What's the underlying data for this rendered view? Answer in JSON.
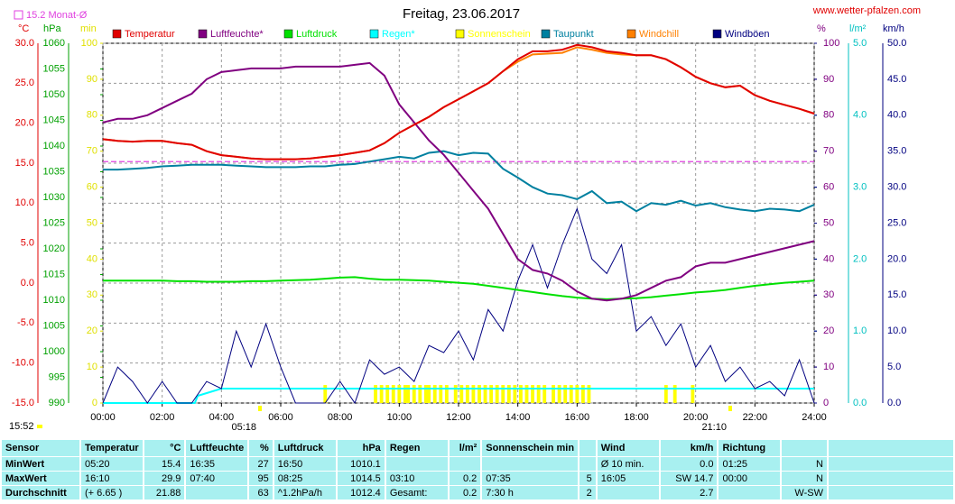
{
  "chart_data": {
    "type": "line",
    "title": "Freitag, 23.06.2017",
    "site": "www.wetter-pfalzen.com",
    "monthly_avg": {
      "label": "15.2 Monat-Ø",
      "value": 15.2,
      "color": "#e040e0",
      "axis": "temp"
    },
    "updated": "15:52",
    "sunrise": {
      "time": "05:18",
      "x": 5.3
    },
    "sunset": {
      "time": "21:10",
      "x": 21.1667
    },
    "grid": true,
    "xlim": [
      0,
      24
    ],
    "xticks": [
      {
        "value": 0,
        "label": "00:00"
      },
      {
        "value": 2,
        "label": "02:00"
      },
      {
        "value": 4,
        "label": "04:00"
      },
      {
        "value": 6,
        "label": "06:00"
      },
      {
        "value": 8,
        "label": "08:00"
      },
      {
        "value": 10,
        "label": "10:00"
      },
      {
        "value": 12,
        "label": "12:00"
      },
      {
        "value": 14,
        "label": "14:00"
      },
      {
        "value": 16,
        "label": "16:00"
      },
      {
        "value": 18,
        "label": "18:00"
      },
      {
        "value": 20,
        "label": "20:00"
      },
      {
        "value": 22,
        "label": "22:00"
      },
      {
        "value": 24,
        "label": "24:00"
      }
    ],
    "x": [
      0,
      0.5,
      1,
      1.5,
      2,
      2.5,
      3,
      3.5,
      4,
      4.5,
      5,
      5.5,
      6,
      6.5,
      7,
      7.5,
      8,
      8.5,
      9,
      9.5,
      10,
      10.5,
      11,
      11.5,
      12,
      12.5,
      13,
      13.5,
      14,
      14.5,
      15,
      15.5,
      16,
      16.5,
      17,
      17.5,
      18,
      18.5,
      19,
      19.5,
      20,
      20.5,
      21,
      21.5,
      22,
      22.5,
      23,
      23.5,
      24
    ],
    "axes": {
      "temp": {
        "title": "°C",
        "side": "left",
        "color": "#e00000",
        "lim": [
          -15,
          30
        ],
        "ticks": [
          {
            "value": 30,
            "label": "30.0"
          },
          {
            "value": 25,
            "label": "25.0"
          },
          {
            "value": 20,
            "label": "20.0"
          },
          {
            "value": 15,
            "label": "15.0"
          },
          {
            "value": 10,
            "label": "10.0"
          },
          {
            "value": 5,
            "label": "5.0"
          },
          {
            "value": 0,
            "label": "0.0"
          },
          {
            "value": -5,
            "label": "-5.0"
          },
          {
            "value": -10,
            "label": "-10.0"
          },
          {
            "value": -15,
            "label": "-15.0"
          }
        ]
      },
      "pressure": {
        "title": "hPa",
        "side": "left",
        "color": "#00a000",
        "lim": [
          990,
          1060
        ],
        "ticks": [
          1060,
          1055,
          1050,
          1045,
          1040,
          1035,
          1030,
          1025,
          1020,
          1015,
          1010,
          1005,
          1000,
          995,
          990
        ]
      },
      "sun": {
        "title": "min",
        "side": "left",
        "color": "#e0e000",
        "lim": [
          0,
          100
        ],
        "ticks": [
          100,
          90,
          80,
          70,
          60,
          50,
          40,
          30,
          20,
          10,
          0
        ]
      },
      "humidity": {
        "title": "%",
        "side": "right",
        "color": "#800080",
        "lim": [
          0,
          100
        ],
        "ticks": [
          100,
          90,
          80,
          70,
          60,
          50,
          40,
          30,
          20,
          10,
          0
        ]
      },
      "rain": {
        "title": "l/m²",
        "side": "right",
        "color": "#00c0c0",
        "lim": [
          0,
          5
        ],
        "ticks": [
          {
            "value": 5,
            "label": "5.0"
          },
          {
            "value": 4,
            "label": "4.0"
          },
          {
            "value": 3,
            "label": "3.0"
          },
          {
            "value": 2,
            "label": "2.0"
          },
          {
            "value": 1,
            "label": "1.0"
          },
          {
            "value": 0,
            "label": "0.0"
          }
        ]
      },
      "wind": {
        "title": "km/h",
        "side": "right",
        "color": "#000080",
        "lim": [
          0,
          50
        ],
        "ticks": [
          {
            "value": 50,
            "label": "50.0"
          },
          {
            "value": 45,
            "label": "45.0"
          },
          {
            "value": 40,
            "label": "40.0"
          },
          {
            "value": 35,
            "label": "35.0"
          },
          {
            "value": 30,
            "label": "30.0"
          },
          {
            "value": 25,
            "label": "25.0"
          },
          {
            "value": 20,
            "label": "20.0"
          },
          {
            "value": 15,
            "label": "15.0"
          },
          {
            "value": 10,
            "label": "10.0"
          },
          {
            "value": 5,
            "label": "5.0"
          },
          {
            "value": 0,
            "label": "0.0"
          }
        ]
      }
    },
    "series": [
      {
        "name": "Temperatur",
        "color": "#e00000",
        "axis": "temp",
        "values": [
          18.0,
          17.8,
          17.7,
          17.8,
          17.8,
          17.5,
          17.3,
          16.5,
          16.0,
          15.8,
          15.6,
          15.5,
          15.5,
          15.5,
          15.6,
          15.8,
          16.0,
          16.3,
          16.6,
          17.5,
          18.8,
          19.8,
          20.8,
          22.0,
          23.0,
          24.0,
          25.0,
          26.5,
          28.0,
          29.0,
          29.0,
          29.2,
          29.8,
          29.5,
          29.0,
          28.8,
          28.5,
          28.5,
          28.0,
          27.0,
          25.8,
          25.0,
          24.5,
          24.7,
          23.5,
          22.8,
          22.3,
          21.8,
          21.2
        ]
      },
      {
        "name": "Luftfeuchte*",
        "color": "#800080",
        "axis": "humidity",
        "values": [
          78,
          79,
          79,
          80,
          82,
          84,
          86,
          90,
          92,
          92.5,
          93,
          93,
          93,
          93.5,
          93.5,
          93.5,
          93.5,
          94,
          94.5,
          91,
          83,
          78,
          73,
          69,
          64,
          59,
          54,
          47,
          40,
          37,
          36,
          34,
          31,
          29,
          28.5,
          29,
          30,
          32,
          34,
          35,
          38,
          39,
          39,
          40,
          41,
          42,
          43,
          44,
          45
        ]
      },
      {
        "name": "Luftdruck",
        "color": "#00e000",
        "axis": "pressure",
        "values": [
          1013.8,
          1013.8,
          1013.8,
          1013.8,
          1013.8,
          1013.7,
          1013.7,
          1013.6,
          1013.6,
          1013.6,
          1013.7,
          1013.7,
          1013.8,
          1013.9,
          1014.0,
          1014.2,
          1014.4,
          1014.5,
          1014.2,
          1014.0,
          1014.0,
          1013.9,
          1013.8,
          1013.6,
          1013.4,
          1013.2,
          1012.8,
          1012.4,
          1012.0,
          1011.6,
          1011.2,
          1010.8,
          1010.5,
          1010.3,
          1010.2,
          1010.3,
          1010.4,
          1010.6,
          1010.9,
          1011.2,
          1011.5,
          1011.7,
          1012.0,
          1012.4,
          1012.8,
          1013.1,
          1013.4,
          1013.6,
          1013.8
        ]
      },
      {
        "name": "Regen*",
        "color": "#00ffff",
        "axis": "rain",
        "x": [
          0,
          3.1,
          3.2,
          4.0,
          24
        ],
        "values": [
          0,
          0,
          0.1,
          0.2,
          0.2
        ]
      },
      {
        "name": "Sonnenschein",
        "color": "#ffff00",
        "axis": "sun",
        "kind": "bars",
        "x": [
          7.5,
          9.2,
          9.4,
          9.6,
          9.8,
          10.0,
          10.2,
          10.3,
          10.5,
          10.7,
          10.9,
          11.0,
          11.2,
          11.4,
          11.6,
          11.9,
          12.1,
          12.3,
          12.5,
          12.7,
          12.9,
          13.1,
          13.3,
          13.5,
          13.7,
          13.9,
          14.1,
          14.3,
          14.5,
          14.7,
          14.9,
          15.2,
          15.4,
          15.6,
          15.8,
          16.0,
          16.2,
          16.4,
          19.0,
          19.3,
          19.9
        ],
        "values": [
          5,
          5,
          5,
          5,
          5,
          5,
          5,
          5,
          5,
          5,
          5,
          5,
          5,
          5,
          5,
          5,
          5,
          5,
          5,
          5,
          5,
          5,
          5,
          5,
          5,
          5,
          5,
          5,
          5,
          5,
          5,
          5,
          5,
          5,
          5,
          5,
          5,
          5,
          5,
          5,
          5
        ]
      },
      {
        "name": "Taupunkt",
        "color": "#0080a0",
        "axis": "temp",
        "values": [
          14.2,
          14.2,
          14.3,
          14.4,
          14.6,
          14.7,
          14.8,
          14.8,
          14.8,
          14.7,
          14.6,
          14.5,
          14.5,
          14.5,
          14.6,
          14.6,
          14.8,
          14.9,
          15.2,
          15.5,
          15.8,
          15.6,
          16.3,
          16.5,
          16.0,
          16.3,
          16.2,
          14.3,
          13.2,
          12.0,
          11.2,
          11.0,
          10.5,
          11.5,
          10.0,
          10.2,
          9.0,
          10.0,
          9.8,
          10.3,
          9.7,
          10.0,
          9.5,
          9.2,
          9.0,
          9.3,
          9.2,
          9.0,
          9.8
        ]
      },
      {
        "name": "Windchill",
        "color": "#ff8000",
        "axis": "temp",
        "values": [
          18.0,
          17.8,
          17.7,
          17.8,
          17.8,
          17.5,
          17.3,
          16.5,
          16.0,
          15.8,
          15.6,
          15.5,
          15.5,
          15.5,
          15.6,
          15.8,
          16.0,
          16.3,
          16.6,
          17.5,
          18.8,
          19.8,
          20.8,
          22.0,
          23.0,
          24.0,
          25.0,
          26.5,
          27.7,
          28.6,
          28.7,
          28.8,
          29.5,
          29.2,
          28.8,
          28.6,
          28.5,
          28.5,
          28.0,
          27.0,
          25.8,
          25.0,
          24.5,
          24.7,
          23.5,
          22.8,
          22.3,
          21.8,
          21.2
        ]
      },
      {
        "name": "Windböen",
        "color": "#000080",
        "axis": "wind",
        "values": [
          0,
          5,
          3,
          0,
          3,
          0,
          0,
          3,
          2,
          10,
          5,
          11,
          5,
          0,
          0,
          0,
          3,
          0,
          6,
          4,
          5,
          3,
          8,
          7,
          10,
          6,
          13,
          10,
          17,
          22,
          16,
          22,
          27,
          20,
          18,
          22,
          10,
          12,
          8,
          11,
          5,
          8,
          3,
          5,
          2,
          3,
          1,
          6,
          0
        ]
      }
    ]
  },
  "table": {
    "sensor": "Sensor",
    "groups": [
      {
        "name": "Temperatur",
        "unit": "°C"
      },
      {
        "name": "Luftfeuchte",
        "unit": "%"
      },
      {
        "name": "Luftdruck",
        "unit": "hPa"
      },
      {
        "name": "Regen",
        "unit": "l/m²"
      },
      {
        "name": "Sonnenschein min"
      },
      {
        "name": "Wind",
        "unit": "km/h"
      },
      {
        "name": "Richtung"
      }
    ],
    "rows": [
      {
        "label": "MinWert",
        "cells": [
          [
            "05:20",
            "15.4"
          ],
          [
            "16:35",
            "27"
          ],
          [
            "16:50",
            "1010.1"
          ],
          [
            null,
            null
          ],
          [
            null,
            null
          ],
          [
            "Ø 10 min.",
            "0.0"
          ],
          [
            "01:25",
            "N"
          ]
        ]
      },
      {
        "label": "MaxWert",
        "cells": [
          [
            "16:10",
            "29.9"
          ],
          [
            "07:40",
            "95"
          ],
          [
            "08:25",
            "1014.5"
          ],
          [
            "03:10",
            "0.2"
          ],
          [
            "07:35",
            "5"
          ],
          [
            "16:05",
            "SW 14.7"
          ],
          [
            "00:00",
            "N"
          ]
        ]
      },
      {
        "label": "Durchschnitt",
        "cells": [
          [
            "(+ 6.65 )",
            "21.88"
          ],
          [
            null,
            "63"
          ],
          [
            "^1.2hPa/h",
            "1012.4"
          ],
          [
            "Gesamt:",
            "0.2"
          ],
          [
            "7:30 h",
            "2"
          ],
          [
            null,
            "2.7"
          ],
          [
            null,
            "W-SW"
          ]
        ]
      }
    ]
  }
}
